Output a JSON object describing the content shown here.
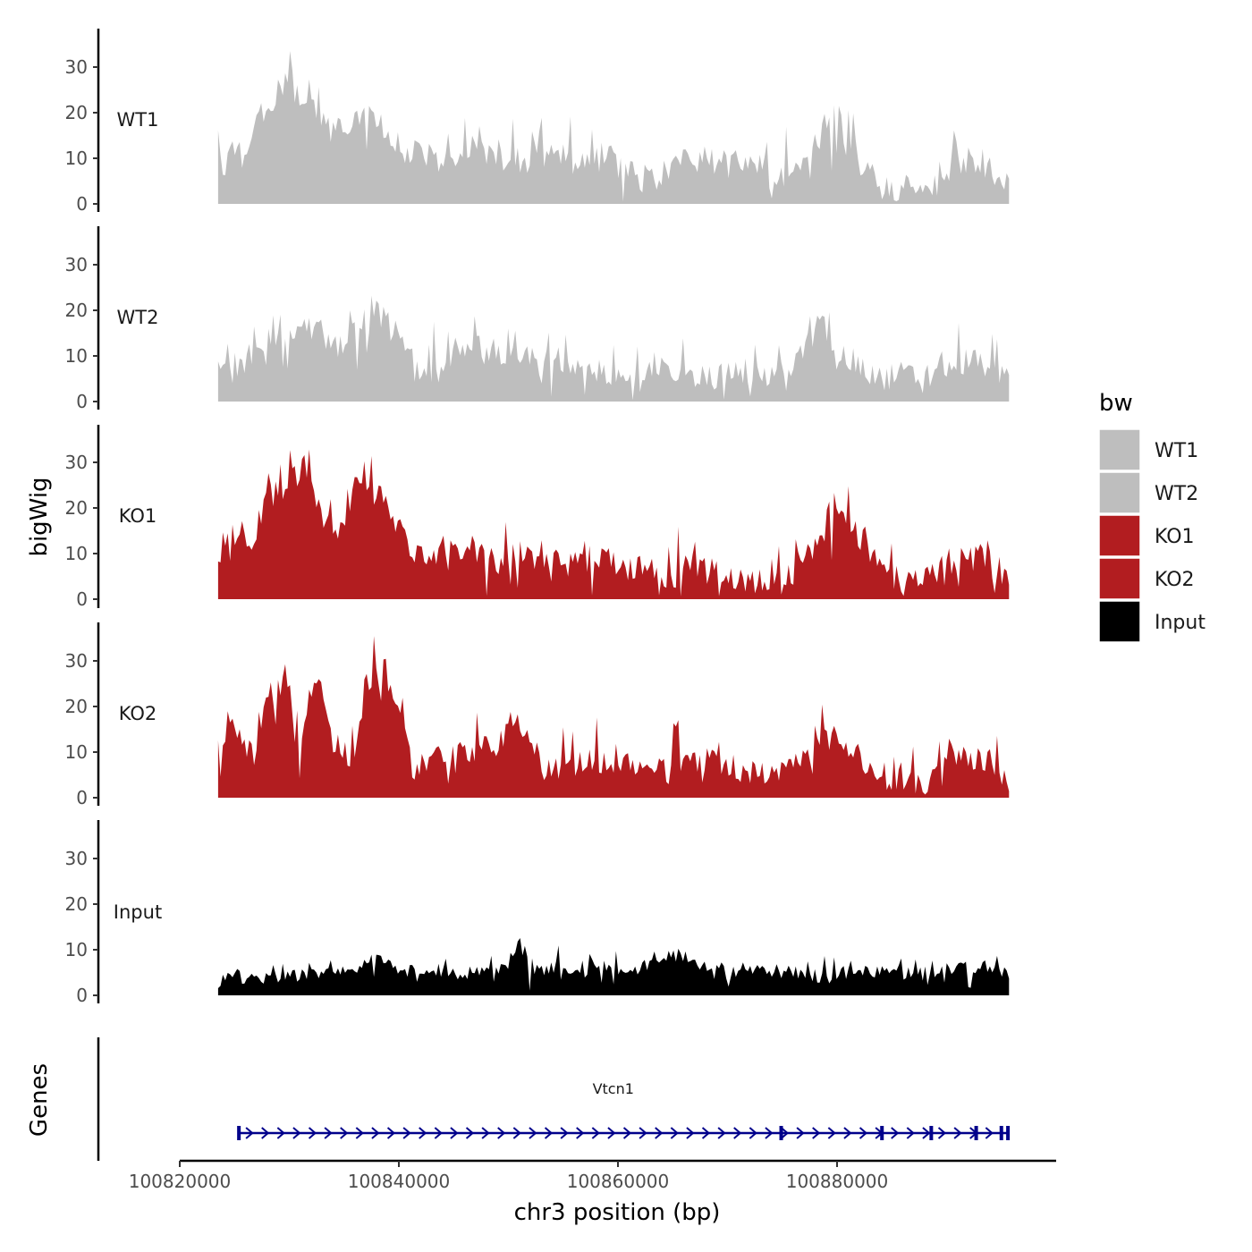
{
  "chart_data": {
    "type": "area",
    "ylabel": "bigWig",
    "xlabel": "chr3 position (bp)",
    "x_ticks": [
      100820000,
      100840000,
      100860000,
      100880000
    ],
    "x_tick_labels": [
      "100820000",
      "100840000",
      "100860000",
      "100880000"
    ],
    "x_range": [
      100820000,
      100900000
    ],
    "data_range": [
      100823500,
      100895700
    ],
    "y_ticks": [
      0,
      10,
      20,
      30
    ],
    "y_tick_labels": [
      "0",
      "10",
      "20",
      "30"
    ],
    "ylim": [
      0,
      38
    ],
    "series": [
      {
        "name": "WT1",
        "color": "#bebebe",
        "seed": 11,
        "base": 9,
        "noise": 7,
        "floor": 1,
        "anchors": [
          [
            100823500,
            9
          ],
          [
            100826000,
            12
          ],
          [
            100828000,
            22
          ],
          [
            100830000,
            26
          ],
          [
            100832000,
            22
          ],
          [
            100834000,
            16
          ],
          [
            100836000,
            20
          ],
          [
            100838000,
            17
          ],
          [
            100840000,
            13
          ],
          [
            100842000,
            11
          ],
          [
            100844000,
            10
          ],
          [
            100846000,
            12
          ],
          [
            100848000,
            11
          ],
          [
            100850000,
            10
          ],
          [
            100852000,
            10
          ],
          [
            100854000,
            12
          ],
          [
            100856000,
            9
          ],
          [
            100858000,
            10
          ],
          [
            100860000,
            10
          ],
          [
            100862000,
            5
          ],
          [
            100864000,
            6
          ],
          [
            100866000,
            9
          ],
          [
            100868000,
            10
          ],
          [
            100870000,
            9
          ],
          [
            100872000,
            10
          ],
          [
            100874000,
            6
          ],
          [
            100876000,
            7
          ],
          [
            100878000,
            12
          ],
          [
            100879800,
            24
          ],
          [
            100881000,
            12
          ],
          [
            100882000,
            10
          ],
          [
            100884000,
            5
          ],
          [
            100886000,
            3
          ],
          [
            100888000,
            4
          ],
          [
            100890000,
            7
          ],
          [
            100892000,
            10
          ],
          [
            100894000,
            8
          ],
          [
            100895700,
            6
          ]
        ]
      },
      {
        "name": "WT2",
        "color": "#bebebe",
        "seed": 23,
        "base": 9,
        "noise": 6,
        "floor": 0.5,
        "anchors": [
          [
            100823500,
            8
          ],
          [
            100826000,
            9
          ],
          [
            100828000,
            13
          ],
          [
            100830000,
            15
          ],
          [
            100832000,
            18
          ],
          [
            100834000,
            12
          ],
          [
            100836000,
            15
          ],
          [
            100837500,
            22
          ],
          [
            100839000,
            17
          ],
          [
            100840000,
            14
          ],
          [
            100842000,
            6
          ],
          [
            100844000,
            8
          ],
          [
            100846000,
            11
          ],
          [
            100848000,
            12
          ],
          [
            100850000,
            10
          ],
          [
            100852000,
            9
          ],
          [
            100854000,
            8
          ],
          [
            100856000,
            6
          ],
          [
            100858000,
            7
          ],
          [
            100860000,
            6
          ],
          [
            100862000,
            5
          ],
          [
            100864000,
            7
          ],
          [
            100866000,
            6
          ],
          [
            100868000,
            5
          ],
          [
            100870000,
            6
          ],
          [
            100872000,
            7
          ],
          [
            100874000,
            5
          ],
          [
            100876000,
            7
          ],
          [
            100878500,
            18
          ],
          [
            100880000,
            11
          ],
          [
            100882000,
            8
          ],
          [
            100884000,
            5
          ],
          [
            100886000,
            6
          ],
          [
            100888000,
            5
          ],
          [
            100890000,
            8
          ],
          [
            100892000,
            9
          ],
          [
            100894000,
            8
          ],
          [
            100895700,
            6
          ]
        ]
      },
      {
        "name": "KO1",
        "color": "#b21d20",
        "seed": 37,
        "base": 10,
        "noise": 6,
        "floor": 1,
        "anchors": [
          [
            100823500,
            9
          ],
          [
            100825000,
            14
          ],
          [
            100826500,
            10
          ],
          [
            100828000,
            22
          ],
          [
            100830000,
            25
          ],
          [
            100831500,
            30
          ],
          [
            100833000,
            18
          ],
          [
            100834500,
            12
          ],
          [
            100836000,
            26
          ],
          [
            100838000,
            24
          ],
          [
            100839500,
            18
          ],
          [
            100841000,
            10
          ],
          [
            100843000,
            10
          ],
          [
            100845000,
            12
          ],
          [
            100847000,
            11
          ],
          [
            100849000,
            8
          ],
          [
            100851000,
            10
          ],
          [
            100853000,
            9
          ],
          [
            100855000,
            8
          ],
          [
            100857000,
            9
          ],
          [
            100859000,
            8
          ],
          [
            100861000,
            7
          ],
          [
            100863000,
            6
          ],
          [
            100865000,
            5
          ],
          [
            100867000,
            7
          ],
          [
            100869000,
            6
          ],
          [
            100871000,
            5
          ],
          [
            100873000,
            4
          ],
          [
            100875000,
            3
          ],
          [
            100877000,
            9
          ],
          [
            100879000,
            14
          ],
          [
            100880500,
            21
          ],
          [
            100882000,
            14
          ],
          [
            100884000,
            8
          ],
          [
            100886000,
            3
          ],
          [
            100888000,
            4
          ],
          [
            100890000,
            8
          ],
          [
            100892000,
            10
          ],
          [
            100894000,
            9
          ],
          [
            100895700,
            4
          ]
        ]
      },
      {
        "name": "KO2",
        "color": "#b21d20",
        "seed": 53,
        "base": 10,
        "noise": 6,
        "floor": 1,
        "anchors": [
          [
            100823500,
            12
          ],
          [
            100825000,
            15
          ],
          [
            100826500,
            10
          ],
          [
            100828000,
            20
          ],
          [
            100829500,
            28
          ],
          [
            100831000,
            14
          ],
          [
            100832500,
            27
          ],
          [
            100834000,
            14
          ],
          [
            100835500,
            5
          ],
          [
            100837000,
            25
          ],
          [
            100838500,
            28
          ],
          [
            100840000,
            18
          ],
          [
            100841500,
            5
          ],
          [
            100843000,
            10
          ],
          [
            100845000,
            9
          ],
          [
            100847000,
            11
          ],
          [
            100849000,
            13
          ],
          [
            100851000,
            16
          ],
          [
            100852500,
            10
          ],
          [
            100854000,
            6
          ],
          [
            100856000,
            9
          ],
          [
            100858000,
            8
          ],
          [
            100860000,
            8
          ],
          [
            100862000,
            7
          ],
          [
            100864000,
            6
          ],
          [
            100866000,
            8
          ],
          [
            100868000,
            9
          ],
          [
            100870000,
            7
          ],
          [
            100872000,
            6
          ],
          [
            100874000,
            5
          ],
          [
            100876000,
            8
          ],
          [
            100878000,
            13
          ],
          [
            100880000,
            13
          ],
          [
            100882000,
            9
          ],
          [
            100884000,
            5
          ],
          [
            100886000,
            4
          ],
          [
            100888000,
            3
          ],
          [
            100890000,
            7
          ],
          [
            100892000,
            9
          ],
          [
            100894000,
            8
          ],
          [
            100895700,
            3
          ]
        ]
      },
      {
        "name": "Input",
        "color": "#000000",
        "seed": 71,
        "base": 4,
        "noise": 3,
        "floor": 1,
        "anchors": [
          [
            100823500,
            4
          ],
          [
            100826000,
            4
          ],
          [
            100828000,
            4
          ],
          [
            100830000,
            4
          ],
          [
            100832000,
            5
          ],
          [
            100834000,
            5
          ],
          [
            100836000,
            6
          ],
          [
            100838000,
            8
          ],
          [
            100840000,
            5
          ],
          [
            100842000,
            6
          ],
          [
            100844000,
            5
          ],
          [
            100846000,
            5
          ],
          [
            100848000,
            5
          ],
          [
            100850000,
            7
          ],
          [
            100851000,
            12
          ],
          [
            100852000,
            5
          ],
          [
            100854000,
            6
          ],
          [
            100856000,
            6
          ],
          [
            100858000,
            7
          ],
          [
            100860000,
            5
          ],
          [
            100862000,
            6
          ],
          [
            100864000,
            8
          ],
          [
            100866000,
            9
          ],
          [
            100868000,
            6
          ],
          [
            100870000,
            5
          ],
          [
            100872000,
            6
          ],
          [
            100874000,
            5
          ],
          [
            100876000,
            5
          ],
          [
            100878000,
            4
          ],
          [
            100880000,
            5
          ],
          [
            100882000,
            5
          ],
          [
            100884000,
            6
          ],
          [
            100886000,
            5
          ],
          [
            100888000,
            5
          ],
          [
            100890000,
            6
          ],
          [
            100892000,
            6
          ],
          [
            100894000,
            6
          ],
          [
            100895700,
            5
          ]
        ]
      }
    ],
    "legend": {
      "title": "bw",
      "entries": [
        {
          "label": "WT1",
          "color": "#bebebe"
        },
        {
          "label": "WT2",
          "color": "#bebebe"
        },
        {
          "label": "KO1",
          "color": "#b21d20"
        },
        {
          "label": "KO2",
          "color": "#b21d20"
        },
        {
          "label": "Input",
          "color": "#000000"
        }
      ]
    },
    "genes": {
      "track_label": "Genes",
      "gene_name": "Vtcn1",
      "color": "#00008b",
      "start": 100825400,
      "end": 100895700,
      "strand": "+",
      "exons": [
        100825400,
        100874900,
        100884100,
        100888600,
        100892700,
        100895000,
        100895600
      ]
    }
  }
}
